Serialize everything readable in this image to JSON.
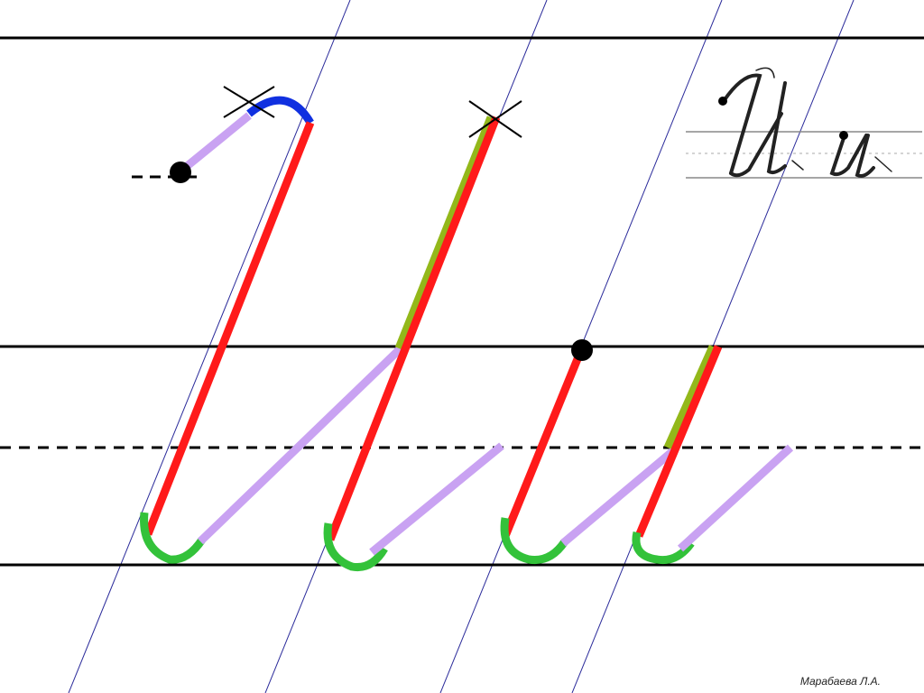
{
  "slide": {
    "author": "Марабаева Л.А."
  },
  "colors": {
    "guide_line": "#000000",
    "slant_line": "#2a2a9a",
    "main_stroke": "#ff1a1a",
    "connector_stroke": "#c9a2f2",
    "loop_stroke": "#33c23a",
    "top_arc": "#1030e0",
    "overlay_stroke": "#93b81a",
    "start_point": "#000000",
    "sample_ink": "#222222"
  },
  "elements": {
    "stroke_types": [
      "main-stroke",
      "connector-stroke",
      "loop-stroke",
      "top-arc",
      "overlay-stroke"
    ],
    "markers": [
      "start-point",
      "cross-mark"
    ],
    "sample_letters": [
      "И",
      "и"
    ]
  }
}
